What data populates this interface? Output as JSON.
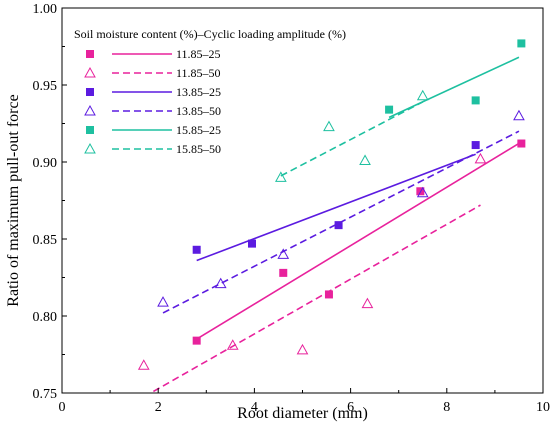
{
  "chart_data": {
    "type": "scatter",
    "xlabel": "Root diameter (mm)",
    "ylabel": "Ratio of maximum pull-out force",
    "xlim": [
      0,
      10
    ],
    "ylim": [
      0.75,
      1.0
    ],
    "xticks": [
      0,
      2,
      4,
      6,
      8,
      10
    ],
    "yticks": [
      0.75,
      0.8,
      0.85,
      0.9,
      0.95,
      1.0
    ],
    "xtick_labels": [
      "0",
      "2",
      "4",
      "6",
      "8",
      "10"
    ],
    "ytick_labels": [
      "0.75",
      "0.80",
      "0.85",
      "0.90",
      "0.95",
      "1.00"
    ],
    "legend_title": "Soil moisture content (%)–Cyclic loading amplitude (%)",
    "legend_position": "top-left",
    "grid": false,
    "series": [
      {
        "name": "11.85–25",
        "color": "#e8229c",
        "marker": "square-filled",
        "points": [
          [
            2.8,
            0.784
          ],
          [
            4.6,
            0.828
          ],
          [
            5.55,
            0.814
          ],
          [
            7.45,
            0.881
          ],
          [
            9.55,
            0.912
          ]
        ],
        "fit": {
          "x": [
            2.8,
            9.55
          ],
          "y": [
            0.785,
            0.913
          ],
          "dash": "solid"
        }
      },
      {
        "name": "11.85–50",
        "color": "#e8229c",
        "marker": "triangle-open",
        "points": [
          [
            1.7,
            0.768
          ],
          [
            3.55,
            0.781
          ],
          [
            5.0,
            0.778
          ],
          [
            6.35,
            0.808
          ],
          [
            8.7,
            0.902
          ]
        ],
        "fit": {
          "x": [
            1.9,
            8.7
          ],
          "y": [
            0.751,
            0.872
          ],
          "dash": "dashed"
        }
      },
      {
        "name": "13.85–25",
        "color": "#5b1be0",
        "marker": "square-filled",
        "points": [
          [
            2.8,
            0.843
          ],
          [
            3.95,
            0.847
          ],
          [
            5.75,
            0.859
          ],
          [
            8.6,
            0.911
          ]
        ],
        "fit": {
          "x": [
            2.8,
            8.6
          ],
          "y": [
            0.836,
            0.905
          ],
          "dash": "solid"
        }
      },
      {
        "name": "13.85–50",
        "color": "#5b1be0",
        "marker": "triangle-open",
        "points": [
          [
            2.1,
            0.809
          ],
          [
            3.3,
            0.821
          ],
          [
            4.6,
            0.84
          ],
          [
            7.5,
            0.88
          ],
          [
            9.5,
            0.93
          ]
        ],
        "fit": {
          "x": [
            2.1,
            9.5
          ],
          "y": [
            0.802,
            0.92
          ],
          "dash": "dashed"
        }
      },
      {
        "name": "15.85–25",
        "color": "#1ec0a0",
        "marker": "square-filled",
        "points": [
          [
            6.8,
            0.934
          ],
          [
            8.6,
            0.94
          ],
          [
            9.55,
            0.977
          ]
        ],
        "fit": {
          "x": [
            6.8,
            9.5
          ],
          "y": [
            0.929,
            0.968
          ],
          "dash": "solid"
        }
      },
      {
        "name": "15.85–50",
        "color": "#1ec0a0",
        "marker": "triangle-open",
        "points": [
          [
            4.55,
            0.89
          ],
          [
            5.55,
            0.923
          ],
          [
            6.3,
            0.901
          ],
          [
            7.5,
            0.943
          ]
        ],
        "fit": {
          "x": [
            4.55,
            7.5
          ],
          "y": [
            0.891,
            0.939
          ],
          "dash": "dashed"
        }
      }
    ]
  }
}
